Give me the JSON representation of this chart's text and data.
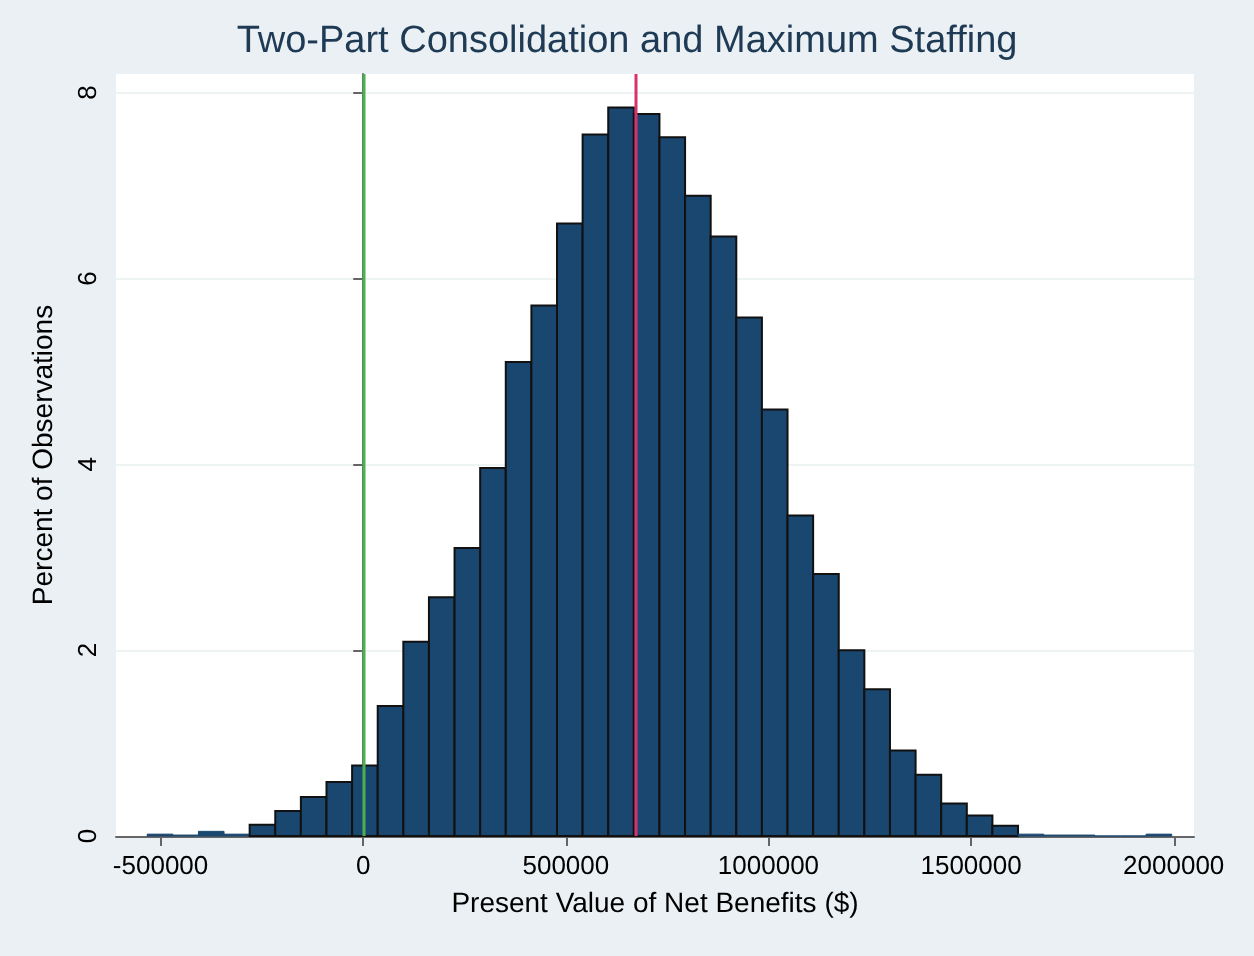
{
  "chart_data": {
    "type": "histogram",
    "title": "Two-Part Consolidation and Maximum Staffing",
    "xlabel": "Present Value of Net Benefits ($)",
    "ylabel": "Percent of Observations",
    "bins": [
      -533000,
      -469800,
      -406600,
      -343400,
      -280200,
      -217000,
      -153800,
      -90600,
      -27400,
      35800,
      99000,
      162200,
      225400,
      288600,
      351800,
      415000,
      478200,
      541400,
      604600,
      667800,
      731000,
      794200,
      857400,
      920600,
      983800,
      1047000,
      1110200,
      1173400,
      1236600,
      1299800,
      1363000,
      1426200,
      1489400,
      1552600,
      1615800,
      1679000,
      1742200,
      1805400,
      1868600,
      1931800,
      1995000
    ],
    "values": [
      0.02,
      0.01,
      0.05,
      0.02,
      0.12,
      0.27,
      0.42,
      0.58,
      0.76,
      1.4,
      2.09,
      2.57,
      3.1,
      3.96,
      5.1,
      5.71,
      6.59,
      7.55,
      7.84,
      7.77,
      7.52,
      6.89,
      6.45,
      5.58,
      4.59,
      3.45,
      2.82,
      2.0,
      1.58,
      0.92,
      0.66,
      0.35,
      0.22,
      0.11,
      0.02,
      0.01,
      0.01,
      0,
      0,
      0.02
    ],
    "color": "#1a476f",
    "xlim": [
      -610000,
      2050000
    ],
    "xticks": [
      -500000,
      0,
      500000,
      1000000,
      1500000,
      2000000
    ],
    "ylim": [
      0,
      8.2
    ],
    "yticks": [
      0,
      2,
      4,
      6,
      8
    ],
    "grid": "y",
    "ref_lines": [
      {
        "axis": "x",
        "value": 0,
        "color": "#4caf50"
      },
      {
        "axis": "x",
        "value": 672000,
        "color": "#d6336c"
      }
    ]
  }
}
